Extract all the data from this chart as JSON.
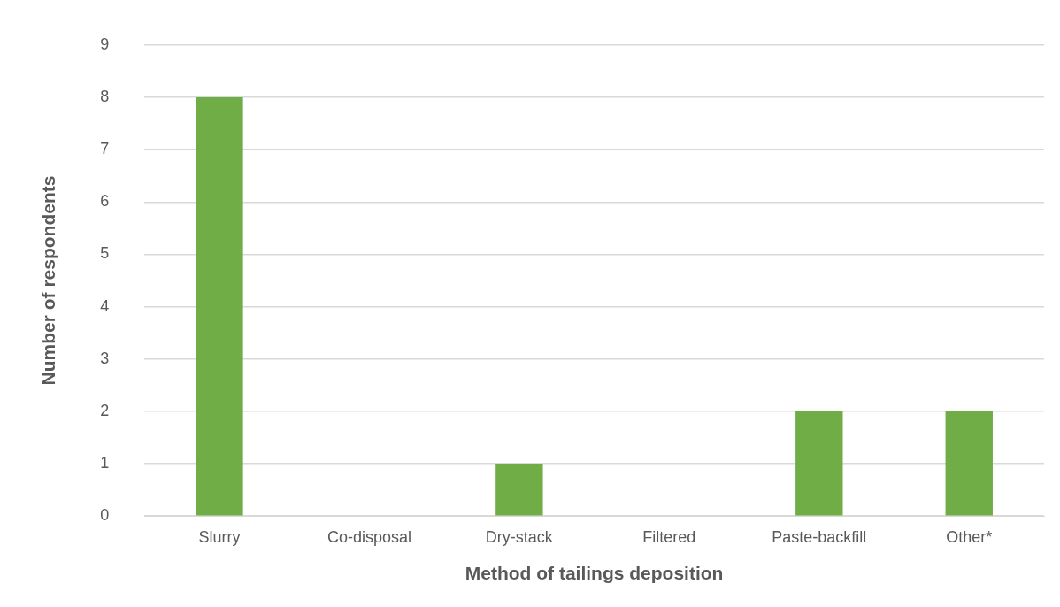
{
  "chart_data": {
    "type": "bar",
    "xlabel": "Method of tailings deposition",
    "ylabel": "Number of respondents",
    "categories": [
      "Slurry",
      "Co-disposal",
      "Dry-stack",
      "Filtered",
      "Paste-backfill",
      "Other*"
    ],
    "values": [
      8,
      0,
      1,
      0,
      2,
      2
    ],
    "color": "#70ad47",
    "ylim": [
      0,
      9
    ],
    "yticks": [
      0,
      1,
      2,
      3,
      4,
      5,
      6,
      7,
      8,
      9
    ],
    "grid": "y",
    "legend": false
  }
}
